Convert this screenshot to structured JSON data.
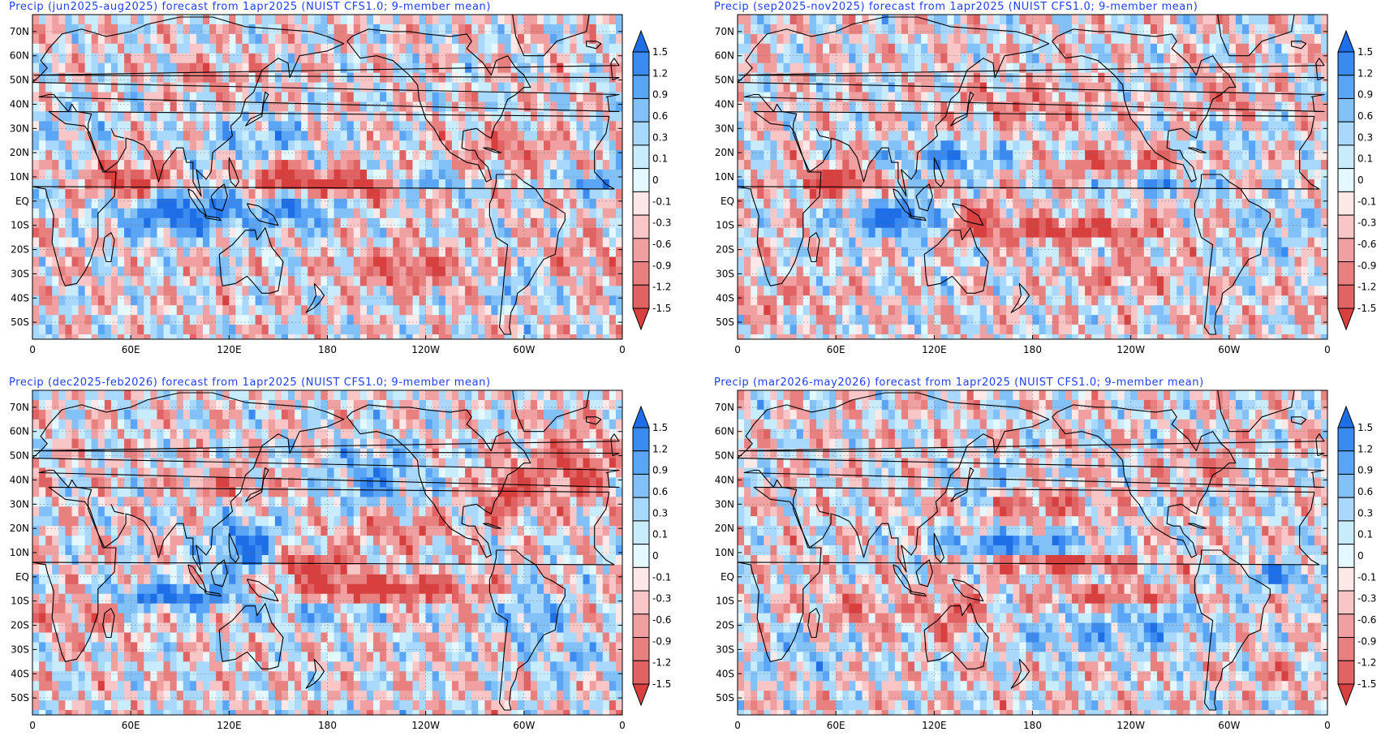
{
  "panels": [
    {
      "id": "jja",
      "title": "Precip (jun2025-aug2025) forecast from 1apr2025 (NUIST CFS1.0; 9-member mean)",
      "pattern": 0
    },
    {
      "id": "son",
      "title": "Precip (sep2025-nov2025) forecast from 1apr2025 (NUIST CFS1.0; 9-member mean)",
      "pattern": 1
    },
    {
      "id": "djf",
      "title": "Precip (dec2025-feb2026) forecast from 1apr2025 (NUIST CFS1.0; 9-member mean)",
      "pattern": 2
    },
    {
      "id": "mam",
      "title": "Precip (mar2026-may2026) forecast from 1apr2025 (NUIST CFS1.0; 9-member mean)",
      "pattern": 3
    }
  ],
  "lat_labels": [
    "70N",
    "60N",
    "50N",
    "40N",
    "30N",
    "20N",
    "10N",
    "EQ",
    "10S",
    "20S",
    "30S",
    "40S",
    "50S"
  ],
  "lon_labels": [
    "0",
    "60E",
    "120E",
    "180",
    "120W",
    "60W",
    "0"
  ],
  "colorbar": {
    "labels": [
      "1.5",
      "1.2",
      "0.9",
      "0.6",
      "0.3",
      "0.1",
      "0",
      "-0.1",
      "-0.3",
      "-0.6",
      "-0.9",
      "-1.2",
      "-1.5"
    ],
    "colors": [
      "#1e6ee8",
      "#3a8af0",
      "#5aa5f5",
      "#82c0f8",
      "#a8d8fb",
      "#c8ecfc",
      "#e4f8ff",
      "#fde8e8",
      "#f8c6c6",
      "#f0a0a0",
      "#e88080",
      "#e06262",
      "#d84040"
    ]
  }
}
